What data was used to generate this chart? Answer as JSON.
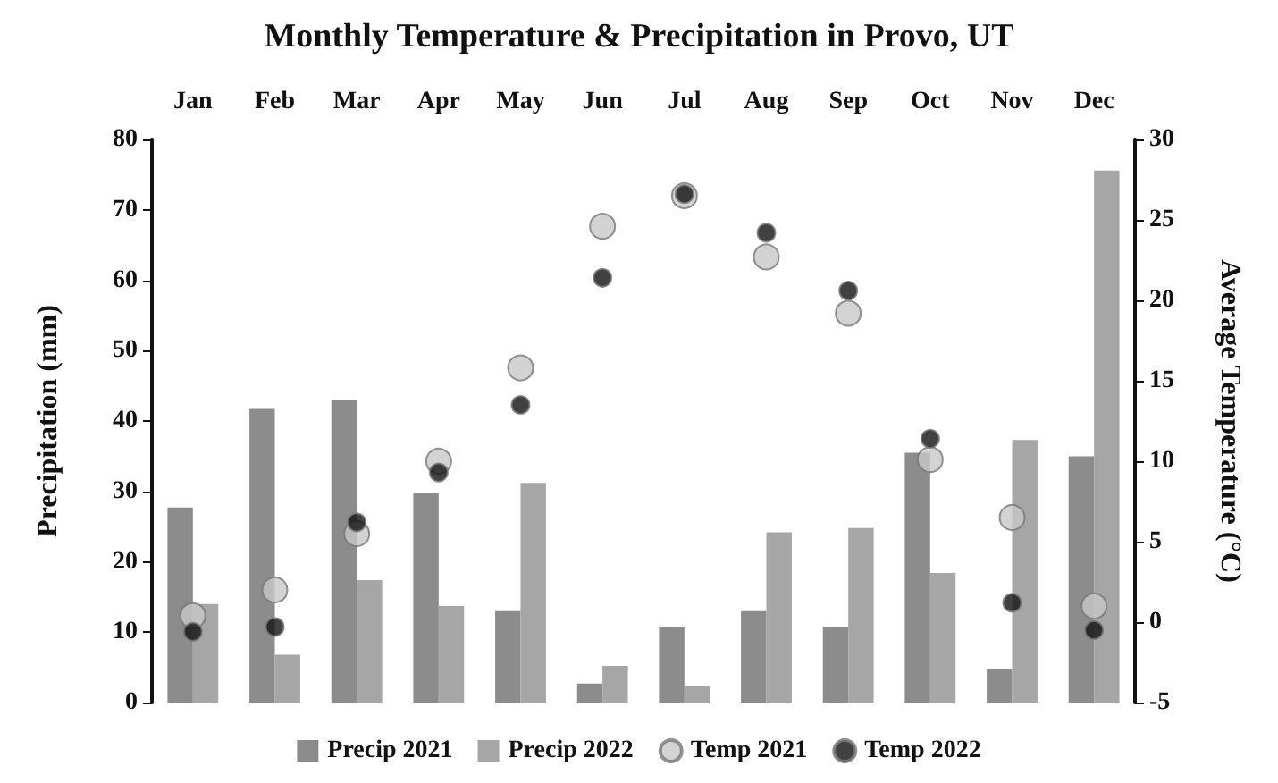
{
  "chart_data": {
    "type": "bar",
    "title": "Monthly Temperature & Precipitation in Provo, UT",
    "categories": [
      "Jan",
      "Feb",
      "Mar",
      "Apr",
      "May",
      "Jun",
      "Jul",
      "Aug",
      "Sep",
      "Oct",
      "Nov",
      "Dec"
    ],
    "series": [
      {
        "name": "Precip 2021",
        "color": "#8c8c8c",
        "values": [
          27.7,
          41.7,
          43,
          29.7,
          13,
          2.7,
          10.8,
          13,
          10.7,
          35.5,
          4.8,
          35
        ]
      },
      {
        "name": "Precip 2022",
        "color": "#a6a6a6",
        "values": [
          14,
          6.8,
          17.4,
          13.7,
          31.2,
          5.2,
          2.3,
          24.2,
          24.8,
          18.4,
          37.3,
          75.6
        ]
      },
      {
        "name": "Temp 2021",
        "type": "scatter",
        "axis": "y2",
        "color": "#c8c8c8",
        "values": [
          0.4,
          2,
          5.5,
          10,
          15.8,
          24.6,
          26.5,
          22.7,
          19.2,
          10.1,
          6.5,
          1
        ]
      },
      {
        "name": "Temp 2022",
        "type": "scatter",
        "axis": "y2",
        "color": "#111111",
        "values": [
          -0.6,
          -0.3,
          6.2,
          9.3,
          13.5,
          21.4,
          26.6,
          24.2,
          20.6,
          11.4,
          1.2,
          -0.5
        ]
      }
    ],
    "ylabel": "Precipitation (mm)",
    "y2label": "Average Temperature (°C)",
    "ylim": [
      0,
      80
    ],
    "yticks": [
      0,
      10,
      20,
      30,
      40,
      50,
      60,
      70,
      80
    ],
    "y2lim": [
      -5,
      30
    ],
    "y2ticks": [
      -5,
      0,
      5,
      10,
      15,
      20,
      25,
      30
    ],
    "marker": "circle",
    "legend": "bottom",
    "grid": false
  }
}
